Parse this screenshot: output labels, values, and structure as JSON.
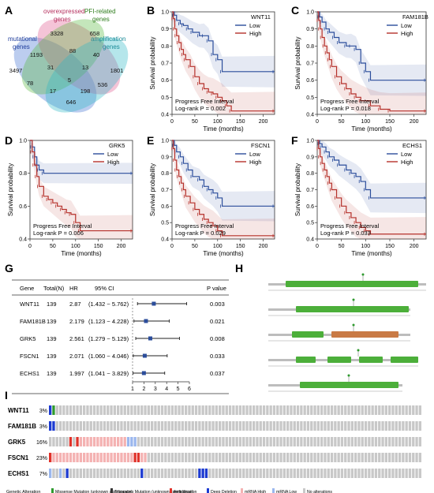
{
  "panel_letters": [
    "A",
    "B",
    "C",
    "D",
    "E",
    "F",
    "G",
    "H",
    "I"
  ],
  "venn": {
    "sets": [
      {
        "label": "mutational\ngenes",
        "color": "#3f6fd1"
      },
      {
        "label": "overexpressed\ngenes",
        "color": "#e0578c"
      },
      {
        "label": "PFI-related\ngenes",
        "color": "#57b83b"
      },
      {
        "label": "amplification\ngenes",
        "color": "#2bb6c6"
      }
    ],
    "counts": [
      "3328",
      "658",
      "1193",
      "88",
      "40",
      "3497",
      "31",
      "13",
      "1801",
      "78",
      "5",
      "536",
      "17",
      "198",
      "646"
    ]
  },
  "km_common": {
    "ylabel": "Survival probability",
    "xlabel": "Time (months)",
    "legend_low": "Low",
    "legend_high": "High",
    "interval": "Progress Free Interval",
    "low_color": "#2b4d9b",
    "high_color": "#b5302a"
  },
  "chart_data": [
    {
      "type": "line",
      "panel": "B",
      "gene": "WNT11",
      "pvalue_text": "Log-rank P = 0.002",
      "xlim": [
        0,
        225
      ],
      "ylim": [
        0.4,
        1.0
      ],
      "xticks": [
        "0",
        "50",
        "100",
        "150",
        "200"
      ],
      "yticks": [
        "0.4",
        "0.5",
        "0.6",
        "0.7",
        "0.8",
        "0.9",
        "1.0"
      ],
      "series": [
        {
          "name": "Low",
          "x": [
            0,
            5,
            10,
            18,
            25,
            35,
            45,
            60,
            70,
            80,
            90,
            100,
            110,
            225
          ],
          "y": [
            1.0,
            0.98,
            0.95,
            0.93,
            0.92,
            0.9,
            0.88,
            0.86,
            0.86,
            0.83,
            0.75,
            0.72,
            0.65,
            0.65
          ]
        },
        {
          "name": "High",
          "x": [
            0,
            3,
            6,
            10,
            15,
            20,
            25,
            30,
            40,
            50,
            60,
            70,
            80,
            90,
            100,
            110,
            120,
            130,
            225
          ],
          "y": [
            1.0,
            0.96,
            0.9,
            0.86,
            0.82,
            0.78,
            0.75,
            0.72,
            0.68,
            0.62,
            0.58,
            0.55,
            0.53,
            0.52,
            0.5,
            0.48,
            0.45,
            0.42,
            0.42
          ]
        }
      ]
    },
    {
      "type": "line",
      "panel": "C",
      "gene": "FAM181B",
      "pvalue_text": "Log-rank P = 0.018",
      "xlim": [
        0,
        225
      ],
      "ylim": [
        0.4,
        1.0
      ],
      "xticks": [
        "0",
        "50",
        "100",
        "150",
        "200"
      ],
      "yticks": [
        "0.4",
        "0.5",
        "0.6",
        "0.7",
        "0.8",
        "0.9",
        "1.0"
      ],
      "series": [
        {
          "name": "Low",
          "x": [
            0,
            5,
            10,
            18,
            25,
            35,
            45,
            60,
            70,
            80,
            90,
            100,
            110,
            225
          ],
          "y": [
            1.0,
            0.97,
            0.94,
            0.9,
            0.88,
            0.85,
            0.82,
            0.8,
            0.8,
            0.78,
            0.7,
            0.65,
            0.6,
            0.6
          ]
        },
        {
          "name": "High",
          "x": [
            0,
            3,
            6,
            10,
            15,
            20,
            25,
            30,
            40,
            50,
            60,
            70,
            80,
            90,
            110,
            130,
            150,
            225
          ],
          "y": [
            1.0,
            0.95,
            0.9,
            0.85,
            0.8,
            0.76,
            0.72,
            0.68,
            0.62,
            0.58,
            0.55,
            0.52,
            0.5,
            0.48,
            0.45,
            0.43,
            0.42,
            0.42
          ]
        }
      ]
    },
    {
      "type": "line",
      "panel": "D",
      "gene": "GRK5",
      "pvalue_text": "Log-rank P = 0.006",
      "xlim": [
        0,
        225
      ],
      "ylim": [
        0.4,
        1.0
      ],
      "xticks": [
        "0",
        "50",
        "100",
        "150",
        "200"
      ],
      "yticks": [
        "0.4",
        "0.6",
        "0.8",
        "1.0"
      ],
      "series": [
        {
          "name": "Low",
          "x": [
            0,
            5,
            10,
            15,
            20,
            30,
            225
          ],
          "y": [
            1.0,
            0.96,
            0.9,
            0.85,
            0.82,
            0.8,
            0.8
          ]
        },
        {
          "name": "High",
          "x": [
            0,
            5,
            10,
            15,
            20,
            30,
            40,
            50,
            60,
            70,
            80,
            90,
            100,
            110,
            225
          ],
          "y": [
            1.0,
            0.93,
            0.85,
            0.78,
            0.72,
            0.66,
            0.64,
            0.62,
            0.6,
            0.58,
            0.56,
            0.55,
            0.5,
            0.45,
            0.45
          ]
        }
      ]
    },
    {
      "type": "line",
      "panel": "E",
      "gene": "FSCN1",
      "pvalue_text": "Log-rank P = 0.029",
      "xlim": [
        0,
        225
      ],
      "ylim": [
        0.4,
        1.0
      ],
      "xticks": [
        "0",
        "50",
        "100",
        "150",
        "200"
      ],
      "yticks": [
        "0.4",
        "0.5",
        "0.6",
        "0.7",
        "0.8",
        "0.9",
        "1.0"
      ],
      "series": [
        {
          "name": "Low",
          "x": [
            0,
            5,
            10,
            18,
            25,
            35,
            45,
            60,
            70,
            80,
            90,
            100,
            110,
            225
          ],
          "y": [
            1.0,
            0.97,
            0.93,
            0.9,
            0.86,
            0.82,
            0.78,
            0.76,
            0.72,
            0.7,
            0.68,
            0.65,
            0.6,
            0.6
          ]
        },
        {
          "name": "High",
          "x": [
            0,
            3,
            6,
            10,
            15,
            20,
            25,
            30,
            40,
            50,
            60,
            70,
            80,
            90,
            100,
            110,
            225
          ],
          "y": [
            1.0,
            0.95,
            0.88,
            0.82,
            0.78,
            0.74,
            0.7,
            0.66,
            0.62,
            0.58,
            0.55,
            0.52,
            0.5,
            0.48,
            0.45,
            0.42,
            0.42
          ]
        }
      ]
    },
    {
      "type": "line",
      "panel": "F",
      "gene": "ECHS1",
      "pvalue_text": "Log-rank P = 0.033",
      "xlim": [
        0,
        225
      ],
      "ylim": [
        0.4,
        1.0
      ],
      "xticks": [
        "0",
        "50",
        "100",
        "150",
        "200"
      ],
      "yticks": [
        "0.4",
        "0.5",
        "0.6",
        "0.7",
        "0.8",
        "0.9",
        "1.0"
      ],
      "series": [
        {
          "name": "Low",
          "x": [
            0,
            5,
            10,
            18,
            25,
            35,
            45,
            60,
            70,
            80,
            90,
            100,
            110,
            225
          ],
          "y": [
            1.0,
            0.98,
            0.96,
            0.93,
            0.9,
            0.88,
            0.85,
            0.82,
            0.8,
            0.78,
            0.75,
            0.7,
            0.65,
            0.65
          ]
        },
        {
          "name": "High",
          "x": [
            0,
            3,
            6,
            10,
            15,
            20,
            25,
            30,
            40,
            50,
            60,
            70,
            80,
            90,
            100,
            110,
            225
          ],
          "y": [
            1.0,
            0.95,
            0.9,
            0.86,
            0.82,
            0.78,
            0.74,
            0.7,
            0.65,
            0.6,
            0.56,
            0.53,
            0.5,
            0.47,
            0.45,
            0.43,
            0.43
          ]
        }
      ]
    },
    {
      "type": "table",
      "panel": "G",
      "headers": [
        "Gene",
        "Total(N)",
        "HR",
        "95% CI",
        "P value"
      ],
      "rows": [
        {
          "gene": "WNT11",
          "n": "139",
          "hr": "2.87",
          "ci": "(1.432 ~ 5.762)",
          "p": "0.003",
          "hr_val": 2.87,
          "lo": 1.432,
          "hi": 5.762
        },
        {
          "gene": "FAM181B",
          "n": "139",
          "hr": "2.179",
          "ci": "(1.123 ~ 4.228)",
          "p": "0.021",
          "hr_val": 2.179,
          "lo": 1.123,
          "hi": 4.228
        },
        {
          "gene": "GRK5",
          "n": "139",
          "hr": "2.561",
          "ci": "(1.279 ~ 5.129)",
          "p": "0.008",
          "hr_val": 2.561,
          "lo": 1.279,
          "hi": 5.129
        },
        {
          "gene": "FSCN1",
          "n": "139",
          "hr": "2.071",
          "ci": "(1.060 ~ 4.046)",
          "p": "0.033",
          "hr_val": 2.071,
          "lo": 1.06,
          "hi": 4.046
        },
        {
          "gene": "ECHS1",
          "n": "139",
          "hr": "1.997",
          "ci": "(1.041 ~ 3.829)",
          "p": "0.037",
          "hr_val": 1.997,
          "lo": 1.041,
          "hi": 3.829
        }
      ],
      "xticks": [
        "1",
        "2",
        "3",
        "4",
        "5",
        "6"
      ]
    }
  ],
  "mutations": {
    "genes": [
      {
        "name": "WNT11",
        "pct": "3%"
      },
      {
        "name": "FAM181B",
        "pct": "3%"
      },
      {
        "name": "GRK5",
        "pct": "16%"
      },
      {
        "name": "FSCN1",
        "pct": "23%"
      },
      {
        "name": "ECHS1",
        "pct": "7%"
      }
    ],
    "legend_title": "Genetic Alteration",
    "legend": [
      {
        "label": "Missense Mutation (unknown significance)",
        "color": "#2e9a2e"
      },
      {
        "label": "Truncating Mutation (unknown significance)",
        "color": "#333333"
      },
      {
        "label": "Amplification",
        "color": "#e0322a"
      },
      {
        "label": "Deep Deletion",
        "color": "#1d3bd1"
      },
      {
        "label": "mRNA High",
        "color": "#f4b2b2"
      },
      {
        "label": "mRNA Low",
        "color": "#9bb7ee"
      },
      {
        "label": "No alterations",
        "color": "#c8c8c8"
      }
    ]
  }
}
